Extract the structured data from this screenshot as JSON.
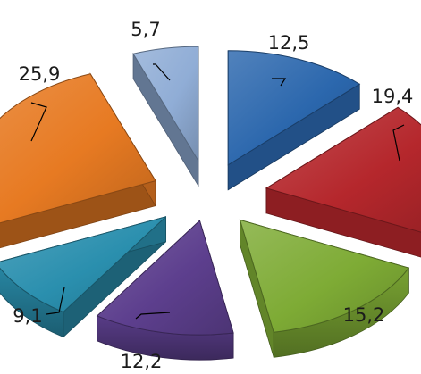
{
  "chart_data": {
    "type": "pie",
    "style": "3d-exploded",
    "title": "",
    "legend": "none",
    "slices": [
      {
        "label": "12,5",
        "value": 12.5,
        "color": "#2b67ad"
      },
      {
        "label": "19,4",
        "value": 19.4,
        "color": "#b5272c"
      },
      {
        "label": "15,2",
        "value": 15.2,
        "color": "#7eab35"
      },
      {
        "label": "12,2",
        "value": 12.2,
        "color": "#5d3f8e"
      },
      {
        "label": "9,1",
        "value": 9.1,
        "color": "#2a8fae"
      },
      {
        "label": "25,9",
        "value": 25.9,
        "color": "#e77a22"
      },
      {
        "label": "5,7",
        "value": 5.7,
        "color": "#90add6"
      }
    ]
  }
}
